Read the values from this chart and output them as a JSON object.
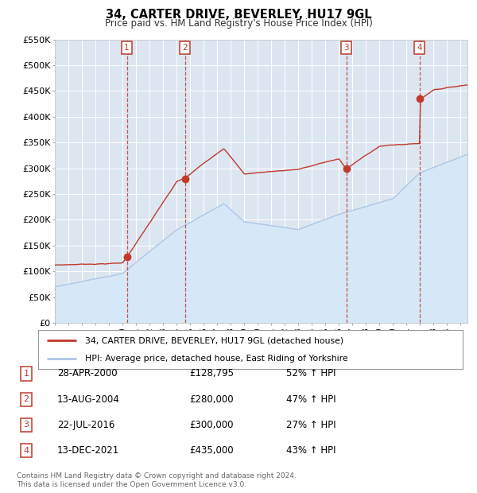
{
  "title": "34, CARTER DRIVE, BEVERLEY, HU17 9GL",
  "subtitle": "Price paid vs. HM Land Registry's House Price Index (HPI)",
  "legend_label_red": "34, CARTER DRIVE, BEVERLEY, HU17 9GL (detached house)",
  "legend_label_blue": "HPI: Average price, detached house, East Riding of Yorkshire",
  "ylim": [
    0,
    550000
  ],
  "yticks": [
    0,
    50000,
    100000,
    150000,
    200000,
    250000,
    300000,
    350000,
    400000,
    450000,
    500000,
    550000
  ],
  "ytick_labels": [
    "£0",
    "£50K",
    "£100K",
    "£150K",
    "£200K",
    "£250K",
    "£300K",
    "£350K",
    "£400K",
    "£450K",
    "£500K",
    "£550K"
  ],
  "footer_line1": "Contains HM Land Registry data © Crown copyright and database right 2024.",
  "footer_line2": "This data is licensed under the Open Government Licence v3.0.",
  "transactions": [
    {
      "num": 1,
      "date": "28-APR-2000",
      "price": "£128,795",
      "pct": "52% ↑ HPI",
      "year": 2000.32,
      "price_val": 128795
    },
    {
      "num": 2,
      "date": "13-AUG-2004",
      "price": "£280,000",
      "pct": "47% ↑ HPI",
      "year": 2004.62,
      "price_val": 280000
    },
    {
      "num": 3,
      "date": "22-JUL-2016",
      "price": "£300,000",
      "pct": "27% ↑ HPI",
      "year": 2016.55,
      "price_val": 300000
    },
    {
      "num": 4,
      "date": "13-DEC-2021",
      "price": "£435,000",
      "pct": "43% ↑ HPI",
      "year": 2021.95,
      "price_val": 435000
    }
  ],
  "background_color": "#ffffff",
  "plot_bg_color": "#dce6f1",
  "grid_color": "#ffffff",
  "red_color": "#c0392b",
  "blue_color": "#aec6e8",
  "blue_fill_color": "#d6e8f7"
}
